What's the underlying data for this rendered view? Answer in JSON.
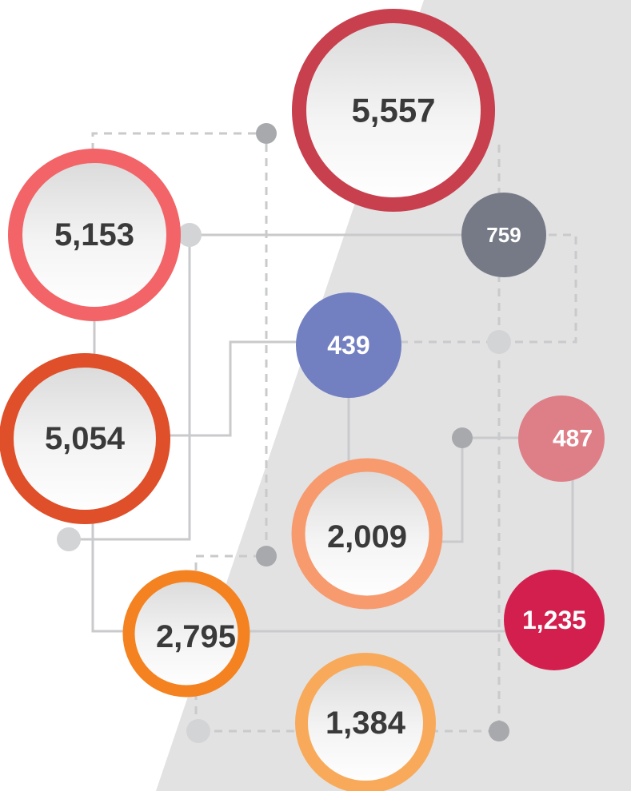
{
  "nodes": [
    {
      "label": "5,557"
    },
    {
      "label": "5,153"
    },
    {
      "label": "5,054"
    },
    {
      "label": "2,009"
    },
    {
      "label": "2,795"
    },
    {
      "label": "1,384"
    },
    {
      "label": "759"
    },
    {
      "label": "439"
    },
    {
      "label": "487"
    },
    {
      "label": "1,235"
    }
  ]
}
